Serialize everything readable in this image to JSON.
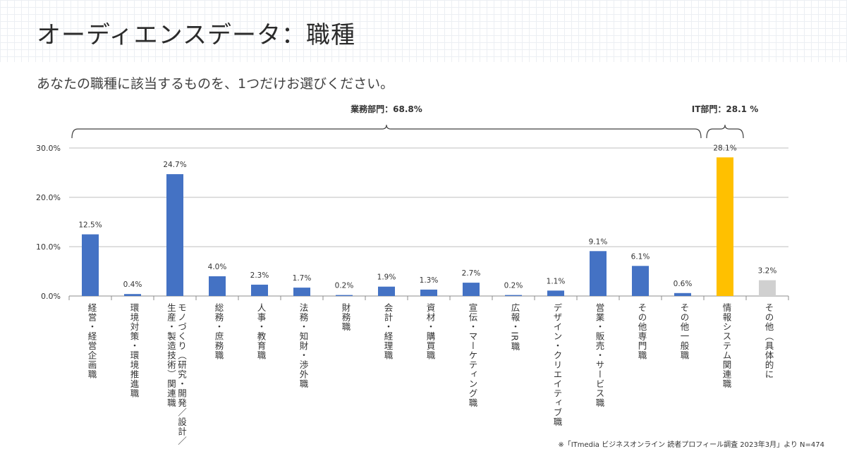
{
  "header": {
    "title": "オーディエンスデータ：職種",
    "question": "あなたの職種に該当するものを、1つだけお選びください。"
  },
  "footnote": "※「ITmedia ビジネスオンライン 読者プロフィール調査 2023年3月」より N=474",
  "chart_data": {
    "type": "bar",
    "title": "",
    "xlabel": "",
    "ylabel": "",
    "ylim": [
      0,
      30
    ],
    "grid": true,
    "y_ticks": [
      "0.0%",
      "10.0%",
      "20.0%",
      "30.0%"
    ],
    "categories": [
      "経営・経営企画職",
      "環境対策・環境推進職",
      "モノづくり（研究・開発／設計／\n生産・製造技術）関連職",
      "総務・庶務職",
      "人事・教育職",
      "法務・知財・渉外職",
      "財務職",
      "会計・経理職",
      "資材・購買職",
      "宣伝・マーケティング職",
      "広報・IR職",
      "デザイン・クリエイティブ職",
      "営業・販売・サービス職",
      "その他専門職",
      "その他一般職",
      "情報システム関連職",
      "その他（具体的に"
    ],
    "values": [
      12.5,
      0.4,
      24.7,
      4.0,
      2.3,
      1.7,
      0.2,
      1.9,
      1.3,
      2.7,
      0.2,
      1.1,
      9.1,
      6.1,
      0.6,
      28.1,
      3.2
    ],
    "value_labels": [
      "12.5%",
      "0.4%",
      "24.7%",
      "4.0%",
      "2.3%",
      "1.7%",
      "0.2%",
      "1.9%",
      "1.3%",
      "2.7%",
      "0.2%",
      "1.1%",
      "9.1%",
      "6.1%",
      "0.6%",
      "28.1%",
      "3.2%"
    ],
    "groups": [
      {
        "label": "業務部門：68.8%",
        "from": 0,
        "to": 14
      },
      {
        "label": "IT部門：28.1 %",
        "from": 15,
        "to": 15
      }
    ],
    "colors": {
      "default": "#4472c4",
      "highlight": "#ffc000",
      "other": "#d0d0d0"
    },
    "highlight_index": 15,
    "other_index": 16
  }
}
